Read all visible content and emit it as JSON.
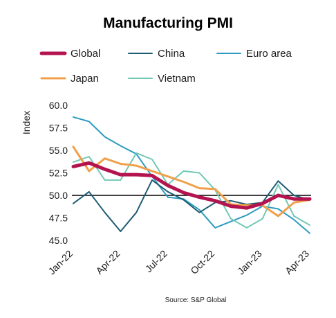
{
  "chart_data": {
    "type": "line",
    "title": "Manufacturing PMI",
    "ylabel": "Index",
    "xlabel": "",
    "source": "Source: S&P Global",
    "ylim": [
      45.0,
      60.0
    ],
    "yticks": [
      "60.0",
      "57.5",
      "55.0",
      "52.5",
      "50.0",
      "47.5",
      "45.0"
    ],
    "ytick_values": [
      60.0,
      57.5,
      55.0,
      52.5,
      50.0,
      47.5,
      45.0
    ],
    "x": [
      "Jan-22",
      "Feb-22",
      "Mar-22",
      "Apr-22",
      "May-22",
      "Jun-22",
      "Jul-22",
      "Aug-22",
      "Sep-22",
      "Oct-22",
      "Nov-22",
      "Dec-22",
      "Jan-23",
      "Feb-23",
      "Mar-23",
      "Apr-23"
    ],
    "xtick_labels": [
      "Jan-22",
      "Apr-22",
      "Jul-22",
      "Oct-22",
      "Jan-23",
      "Apr-23"
    ],
    "xtick_indices": [
      0,
      3,
      6,
      9,
      12,
      15
    ],
    "reference_line": 50.0,
    "grid": false,
    "legend_position": "top",
    "series": [
      {
        "name": "Euro area",
        "color": "#2e9bc0",
        "width": 2,
        "values": [
          58.7,
          58.2,
          56.5,
          55.5,
          54.6,
          52.1,
          49.8,
          49.6,
          48.4,
          46.4,
          47.1,
          47.8,
          48.8,
          48.5,
          47.3,
          45.8
        ]
      },
      {
        "name": "Vietnam",
        "color": "#72c8b4",
        "width": 2,
        "values": [
          53.7,
          54.3,
          51.7,
          51.7,
          54.7,
          54.0,
          51.2,
          52.7,
          52.5,
          50.6,
          47.4,
          46.4,
          47.4,
          51.2,
          47.7,
          46.7
        ]
      },
      {
        "name": "China",
        "color": "#1e5c74",
        "width": 2,
        "values": [
          49.1,
          50.4,
          48.1,
          46.0,
          48.1,
          51.7,
          50.4,
          49.5,
          48.1,
          49.2,
          49.4,
          49.0,
          49.2,
          51.6,
          50.0,
          49.5
        ]
      },
      {
        "name": "Japan",
        "color": "#f0a04b",
        "width": 3,
        "values": [
          55.4,
          52.7,
          54.1,
          53.5,
          53.3,
          52.7,
          52.1,
          51.5,
          50.8,
          50.7,
          49.0,
          48.9,
          48.9,
          47.7,
          49.2,
          49.5
        ]
      },
      {
        "name": "Global",
        "color": "#b3134f",
        "width": 5,
        "values": [
          53.2,
          53.6,
          52.9,
          52.3,
          52.3,
          52.2,
          51.1,
          50.3,
          49.8,
          49.4,
          48.8,
          48.6,
          49.1,
          50.0,
          49.6,
          49.6
        ]
      }
    ],
    "legend": [
      {
        "name": "Global",
        "color": "#b3134f",
        "width": 5
      },
      {
        "name": "China",
        "color": "#1e5c74",
        "width": 2
      },
      {
        "name": "Euro area",
        "color": "#2e9bc0",
        "width": 2
      },
      {
        "name": "Japan",
        "color": "#f0a04b",
        "width": 3
      },
      {
        "name": "Vietnam",
        "color": "#72c8b4",
        "width": 2
      }
    ]
  }
}
